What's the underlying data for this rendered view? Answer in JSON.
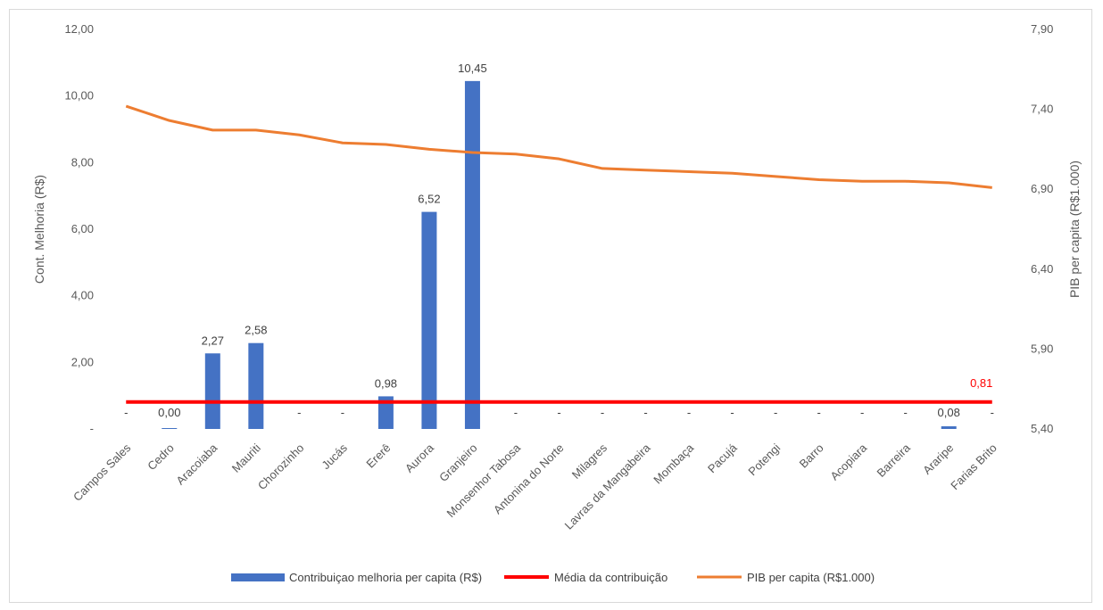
{
  "chart_data": {
    "type": "bar",
    "categories": [
      "Campos Sales",
      "Cedro",
      "Aracoiaba",
      "Mauriti",
      "Chorozinho",
      "Jucás",
      "Ererê",
      "Aurora",
      "Granjeiro",
      "Monsenhor Tabosa",
      "Antonina do Norte",
      "Milagres",
      "Lavras da Mangabeira",
      "Mombaça",
      "Pacujá",
      "Potengi",
      "Barro",
      "Acopiara",
      "Barreira",
      "Araripe",
      "Farias Brito"
    ],
    "series": [
      {
        "name": "Contribuiçao melhoria per capita (R$)",
        "type": "bar",
        "axis": "left",
        "color": "#4472c4",
        "values": [
          0,
          0.001,
          2.27,
          2.58,
          0,
          0,
          0.98,
          6.52,
          10.45,
          0,
          0,
          0,
          0,
          0,
          0,
          0,
          0,
          0,
          0,
          0.08,
          0
        ],
        "labels": [
          "-",
          "0,00",
          "2,27",
          "2,58",
          "-",
          "-",
          "0,98",
          "6,52",
          "10,45",
          "-",
          "-",
          "-",
          "-",
          "-",
          "-",
          "-",
          "-",
          "-",
          "-",
          "0,08",
          "-"
        ]
      },
      {
        "name": "Média da contribuição",
        "type": "line",
        "axis": "left",
        "color": "#ff0000",
        "values": [
          0.81,
          0.81,
          0.81,
          0.81,
          0.81,
          0.81,
          0.81,
          0.81,
          0.81,
          0.81,
          0.81,
          0.81,
          0.81,
          0.81,
          0.81,
          0.81,
          0.81,
          0.81,
          0.81,
          0.81,
          0.81
        ],
        "end_label": "0,81"
      },
      {
        "name": "PIB per capita (R$1.000)",
        "type": "line",
        "axis": "right",
        "color": "#ed7d31",
        "values": [
          7.42,
          7.33,
          7.27,
          7.27,
          7.24,
          7.19,
          7.18,
          7.15,
          7.13,
          7.12,
          7.09,
          7.03,
          7.02,
          7.01,
          7.0,
          6.98,
          6.96,
          6.95,
          6.95,
          6.94,
          6.91
        ]
      }
    ],
    "ylabel": "Cont. Melhoria (R$)",
    "ylabel_right": "PIB per capita (R$1.000)",
    "ylim": [
      0,
      12
    ],
    "ylim_right": [
      5.4,
      7.9
    ],
    "yticks": [
      "-",
      "2,00",
      "4,00",
      "6,00",
      "8,00",
      "10,00",
      "12,00"
    ],
    "yticks_right": [
      "5,40",
      "5,90",
      "6,40",
      "6,90",
      "7,40",
      "7,90"
    ],
    "grid": false,
    "legend": "bottom"
  }
}
